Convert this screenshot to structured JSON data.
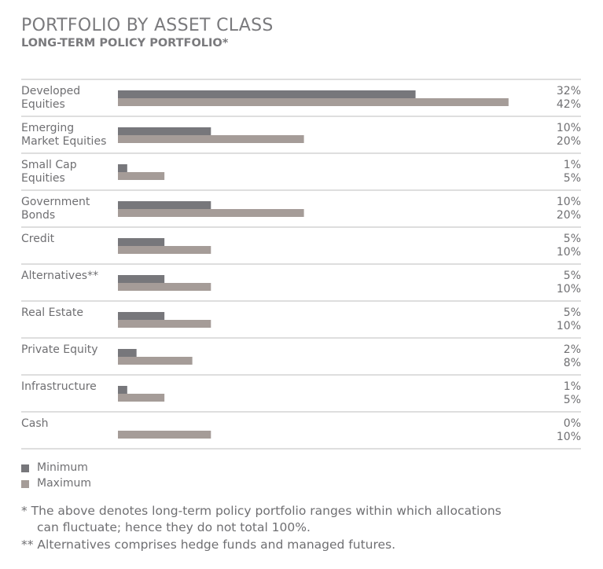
{
  "chart_data": {
    "type": "bar",
    "orientation": "horizontal",
    "title": "PORTFOLIO BY ASSET CLASS",
    "subtitle": "LONG-TERM POLICY PORTFOLIO*",
    "categories": [
      "Developed Equities",
      "Emerging Market Equities",
      "Small Cap Equities",
      "Government Bonds",
      "Credit",
      "Alternatives**",
      "Real Estate",
      "Private Equity",
      "Infrastructure",
      "Cash"
    ],
    "series": [
      {
        "name": "Minimum",
        "color": "#77777b",
        "values": [
          32,
          10,
          1,
          10,
          5,
          5,
          5,
          2,
          1,
          0
        ],
        "value_labels": [
          "32%",
          "10%",
          "1%",
          "10%",
          "5%",
          "5%",
          "5%",
          "2%",
          "1%",
          "0%"
        ]
      },
      {
        "name": "Maximum",
        "color": "#a59c98",
        "values": [
          42,
          20,
          5,
          20,
          10,
          10,
          10,
          8,
          5,
          10
        ],
        "value_labels": [
          "42%",
          "20%",
          "5%",
          "20%",
          "10%",
          "10%",
          "10%",
          "8%",
          "5%",
          "10%"
        ]
      }
    ],
    "notes": [
      "* The above denotes long-term policy portfolio ranges within which allocations can fluctuate; hence they do not total 100%.",
      "** Alternatives comprises hedge funds and managed futures."
    ]
  }
}
